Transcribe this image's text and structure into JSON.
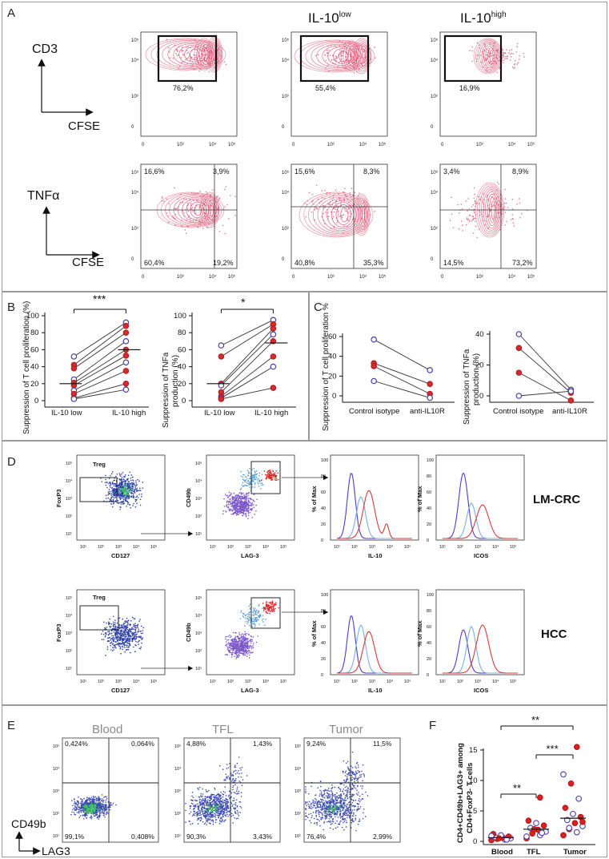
{
  "panels": {
    "A": {
      "letter": "A",
      "col_headers": [
        "IL-10",
        "IL-10"
      ],
      "col_header_sup": [
        "low",
        "high"
      ],
      "row1": {
        "y_label": "CD3",
        "x_label": "CFSE",
        "gate_pcts": [
          "76,2%",
          "55,4%",
          "16,9%"
        ]
      },
      "row2": {
        "y_label": "TNFα",
        "x_label": "CFSE",
        "quadrants": [
          [
            "16,6%",
            "3,9%",
            "60,4%",
            "19,2%"
          ],
          [
            "15,6%",
            "8,3%",
            "40,8%",
            "35,3%"
          ],
          [
            "3,4%",
            "8,9%",
            "14,5%",
            "73,2%"
          ]
        ]
      },
      "ticks_y": [
        "10⁵",
        "10⁴",
        "10³",
        "0"
      ],
      "ticks_x": [
        "0",
        "10³",
        "10⁴",
        "10⁵"
      ]
    },
    "B": {
      "letter": "B",
      "left": {
        "y_label": "Suppression of T cell proliferation (%)",
        "categories": [
          "IL-10 low",
          "IL-10 high"
        ],
        "y_ticks": [
          "0",
          "20",
          "40",
          "60",
          "80",
          "100"
        ],
        "sig": "***"
      },
      "right": {
        "y_label": "Suppression of TNFa production (%)",
        "categories": [
          "IL-10 low",
          "IL-10 high"
        ],
        "y_ticks": [
          "0",
          "20",
          "40",
          "60",
          "80",
          "100"
        ],
        "sig": "*"
      }
    },
    "C": {
      "letter": "C",
      "left": {
        "y_label": "Suppression of T cell proliferation %",
        "categories": [
          "Control isotype",
          "anti-IL10R"
        ],
        "y_ticks": [
          "0",
          "20",
          "40",
          "60"
        ]
      },
      "right": {
        "y_label": "Suppression of TNFa production (%)",
        "categories": [
          "Control isotype",
          "anti-IL10R"
        ],
        "y_ticks": [
          "0",
          "20",
          "40"
        ]
      }
    },
    "D": {
      "letter": "D",
      "rows": [
        {
          "label": "LM-CRC"
        },
        {
          "label": "HCC"
        }
      ],
      "gate_label": "Treg",
      "x_labels": [
        "CD127",
        "LAG-3",
        "IL-10",
        "ICOS"
      ],
      "y_labels": [
        "FoxP3",
        "CD49b",
        "% of Max",
        "% of Max"
      ],
      "hist_ticks": [
        "0",
        "20",
        "40",
        "60",
        "80",
        "100"
      ],
      "ticks": [
        "10¹",
        "10²",
        "10³",
        "10⁴",
        "10⁵"
      ]
    },
    "E": {
      "letter": "E",
      "titles": [
        "Blood",
        "TFL",
        "Tumor"
      ],
      "y_label": "CD49b",
      "x_label": "LAG3",
      "quadrants": [
        [
          "0,424%",
          "0,064%",
          "99,1%",
          "0,408%"
        ],
        [
          "4,88%",
          "1,43%",
          "90,3%",
          "3,43%"
        ],
        [
          "9,24%",
          "11,5%",
          "76,4%",
          "2,99%"
        ]
      ]
    },
    "F": {
      "letter": "F",
      "y_label": "CD4+CD49b+LAG3+ among CD4+FoxP3- T cells",
      "y_ticks": [
        "0",
        "5",
        "10",
        "15"
      ],
      "categories": [
        "Blood",
        "TFL",
        "Tumor"
      ],
      "sig": [
        "**",
        "***",
        "**"
      ]
    }
  },
  "chart_data": [
    {
      "type": "scatter",
      "title": "",
      "ylabel": "Suppression of T cell proliferation (%)",
      "categories": [
        "IL-10 low",
        "IL-10 high"
      ],
      "ylim": [
        0,
        100
      ],
      "pairs": [
        [
          52,
          92
        ],
        [
          42,
          88
        ],
        [
          38,
          80
        ],
        [
          25,
          70
        ],
        [
          21,
          60
        ],
        [
          18,
          53
        ],
        [
          12,
          45
        ],
        [
          8,
          35
        ],
        [
          3,
          20
        ],
        [
          2,
          13
        ]
      ],
      "median": [
        20,
        60
      ]
    },
    {
      "type": "scatter",
      "title": "",
      "ylabel": "Suppression of TNFa production (%)",
      "categories": [
        "IL-10 low",
        "IL-10 high"
      ],
      "ylim": [
        0,
        100
      ],
      "pairs": [
        [
          65,
          95
        ],
        [
          52,
          90
        ],
        [
          20,
          85
        ],
        [
          18,
          78
        ],
        [
          10,
          70
        ],
        [
          5,
          52
        ],
        [
          3,
          40
        ],
        [
          2,
          15
        ]
      ],
      "median": [
        20,
        68
      ]
    },
    {
      "type": "line",
      "title": "",
      "ylabel": "Suppression of T cell proliferation %",
      "categories": [
        "Control isotype",
        "anti-IL10R"
      ],
      "ylim": [
        0,
        60
      ],
      "pairs": [
        [
          57,
          26
        ],
        [
          33,
          12
        ],
        [
          30,
          2
        ],
        [
          15,
          -2
        ]
      ]
    },
    {
      "type": "line",
      "title": "",
      "ylabel": "Suppression of TNFa production (%)",
      "categories": [
        "Control isotype",
        "anti-IL10R"
      ],
      "ylim": [
        0,
        40
      ],
      "pairs": [
        [
          40,
          4
        ],
        [
          31,
          2
        ],
        [
          15,
          -3
        ],
        [
          0,
          3
        ]
      ]
    },
    {
      "type": "scatter",
      "title": "",
      "ylabel": "CD4+CD49b+LAG3+ among CD4+FoxP3- T cells",
      "categories": [
        "Blood",
        "TFL",
        "Tumor"
      ],
      "ylim": [
        0,
        15
      ],
      "groups": [
        [
          0.2,
          0.3,
          0.4,
          0.5,
          0.6,
          0.7,
          0.8,
          1.0,
          1.2,
          0.3,
          0.5,
          0.9
        ],
        [
          0.5,
          1.0,
          1.3,
          1.6,
          1.9,
          2.2,
          2.6,
          3.0,
          3.4,
          1.4,
          2.0,
          0.8,
          7.2
        ],
        [
          1.0,
          1.5,
          2.0,
          2.5,
          3.0,
          3.5,
          4.0,
          4.5,
          5.5,
          7.0,
          9.5,
          11.0,
          15.5,
          2.2,
          3.2
        ]
      ],
      "means": [
        0.6,
        2.0,
        3.8
      ]
    }
  ]
}
